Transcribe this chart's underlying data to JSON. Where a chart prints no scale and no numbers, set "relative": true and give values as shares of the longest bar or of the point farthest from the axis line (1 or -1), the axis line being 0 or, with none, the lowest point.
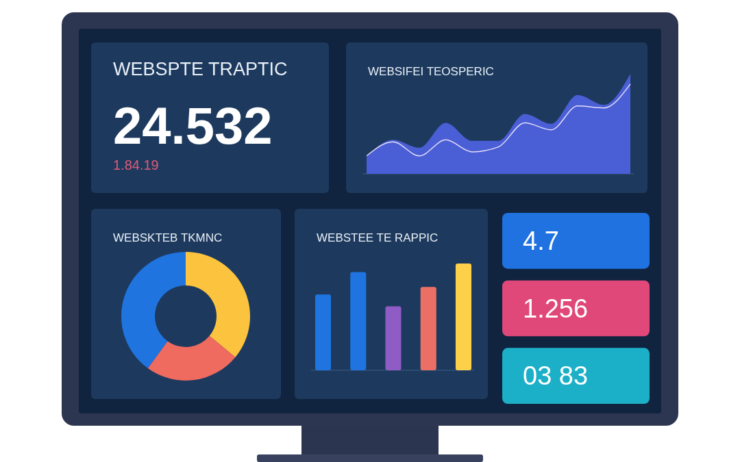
{
  "chart_data": [
    {
      "type": "other",
      "title": "WEBSPTE TRAPTIC",
      "annotations": [
        "24.532",
        "1.84.19"
      ]
    },
    {
      "type": "area",
      "title": "WEBSIFEI TEOSPERIC",
      "relative": true,
      "categories": [
        null,
        null,
        null,
        null,
        null,
        null,
        null,
        null,
        null,
        null,
        null
      ],
      "series": [
        {
          "type": "area",
          "color": "#4a5ed6",
          "values": [
            0.17,
            0.34,
            0.26,
            0.51,
            0.33,
            0.33,
            0.6,
            0.5,
            0.79,
            0.69,
            1
          ]
        },
        {
          "type": "line",
          "color": "#e4def5",
          "values": [
            0.18,
            0.32,
            0.18,
            0.34,
            0.22,
            0.27,
            0.51,
            0.44,
            0.68,
            0.66,
            0.9
          ]
        }
      ]
    },
    {
      "type": "donut",
      "title": "WEBSKTEB TKMNC",
      "categories": [
        null,
        null,
        null
      ],
      "values": [
        36,
        24,
        40
      ],
      "colors": [
        "#fcc33f",
        "#ef6a5f",
        "#1f74e0"
      ]
    },
    {
      "type": "bar",
      "title": "WEBSTEE TE RAPPIC",
      "relative": true,
      "categories": [
        null,
        null,
        null,
        null,
        null
      ],
      "values": [
        0.71,
        0.92,
        0.6,
        0.78,
        1
      ],
      "colors": [
        "#1f74e0",
        "#1f74e0",
        "#8f5bc4",
        "#ec6f66",
        "#fdd04a"
      ]
    },
    {
      "type": "other",
      "annotations": [
        "4.7",
        "1.256",
        "03 83"
      ],
      "colors": [
        "#1f72e0",
        "#e0487a",
        "#1cb0c8"
      ]
    }
  ]
}
